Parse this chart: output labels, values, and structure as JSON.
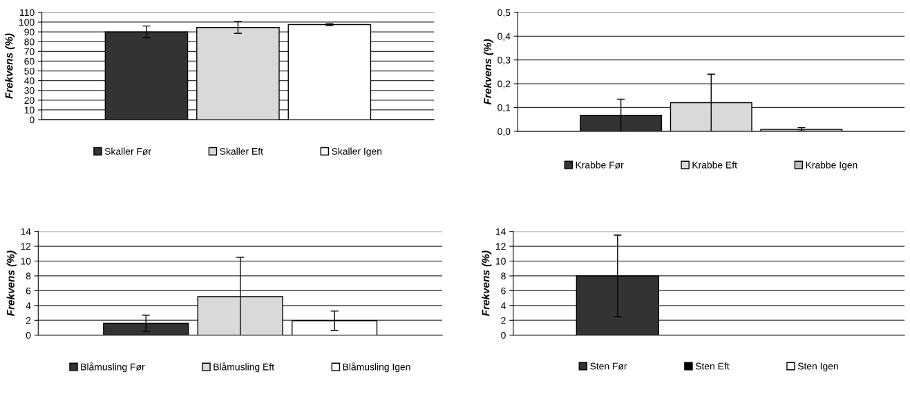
{
  "chart_data": [
    {
      "type": "bar",
      "ylabel": "Frekvens (%)",
      "categories": [
        null
      ],
      "ylim": [
        0,
        110
      ],
      "yticks": [
        0,
        10,
        20,
        30,
        40,
        50,
        60,
        70,
        80,
        90,
        100,
        110
      ],
      "grid": "y",
      "legend": "bottom",
      "series": [
        {
          "name": "Skaller Før",
          "color": "#333333",
          "values": [
            90
          ],
          "errors": [
            6
          ]
        },
        {
          "name": "Skaller Eft",
          "color": "#d9d9d9",
          "values": [
            94.5
          ],
          "errors": [
            6
          ]
        },
        {
          "name": "Skaller Igen",
          "color": "#ffffff",
          "values": [
            97.5
          ],
          "errors": [
            1
          ]
        }
      ]
    },
    {
      "type": "bar",
      "ylabel": "Frekvens (%)",
      "categories": [
        null
      ],
      "ylim": [
        0,
        0.5
      ],
      "yticks": [
        {
          "value": 0,
          "label": "0,0"
        },
        {
          "value": 0.1,
          "label": "0,1"
        },
        {
          "value": 0.2,
          "label": "0,2"
        },
        {
          "value": 0.3,
          "label": "0,3"
        },
        {
          "value": 0.4,
          "label": "0,4"
        },
        {
          "value": 0.5,
          "label": "0,5"
        }
      ],
      "grid": "y",
      "legend": "bottom",
      "series": [
        {
          "name": "Krabbe Før",
          "color": "#333333",
          "values": [
            0.067
          ],
          "errors": [
            0.068
          ]
        },
        {
          "name": "Krabbe Eft",
          "color": "#d9d9d9",
          "values": [
            0.12
          ],
          "errors": [
            0.12
          ]
        },
        {
          "name": "Krabbe Igen",
          "color": "#bbbbbb",
          "values": [
            0.008
          ],
          "errors": [
            0.007
          ]
        }
      ]
    },
    {
      "type": "bar",
      "ylabel": "Frekvens (%)",
      "categories": [
        null
      ],
      "ylim": [
        0,
        14
      ],
      "yticks": [
        0,
        2,
        4,
        6,
        8,
        10,
        12,
        14
      ],
      "grid": "y",
      "legend": "bottom",
      "series": [
        {
          "name": "Blåmusling Før",
          "color": "#333333",
          "values": [
            1.6
          ],
          "errors": [
            1.1
          ]
        },
        {
          "name": "Blåmusling Eft",
          "color": "#d9d9d9",
          "values": [
            5.2
          ],
          "errors": [
            5.3
          ]
        },
        {
          "name": "Blåmusling Igen",
          "color": "#ffffff",
          "values": [
            1.95
          ],
          "errors": [
            1.3
          ]
        }
      ]
    },
    {
      "type": "bar",
      "ylabel": "Frekvens (%)",
      "categories": [
        null
      ],
      "ylim": [
        0,
        14
      ],
      "yticks": [
        0,
        2,
        4,
        6,
        8,
        10,
        12,
        14
      ],
      "grid": "y",
      "legend": "bottom",
      "series": [
        {
          "name": "Sten Før",
          "color": "#333333",
          "values": [
            8.0
          ],
          "errors": [
            5.5
          ]
        },
        {
          "name": "Sten Eft",
          "color": "#000000",
          "values": [
            0
          ],
          "errors": [
            null
          ]
        },
        {
          "name": "Sten Igen",
          "color": "#ffffff",
          "values": [
            0
          ],
          "errors": [
            null
          ]
        }
      ]
    }
  ]
}
